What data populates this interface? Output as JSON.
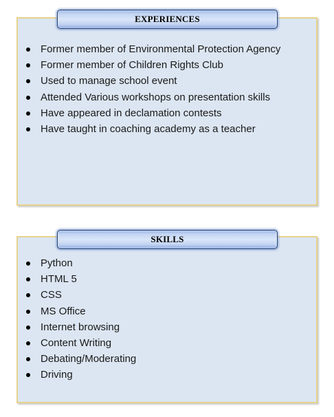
{
  "experiences": {
    "title": "EXPERIENCES",
    "items": [
      "Former member of Environmental Protection Agency",
      "Former member of Children Rights Club",
      "Used to manage school event",
      "Attended Various workshops on presentation skills",
      "Have appeared in declamation contests",
      "Have taught in coaching academy as a teacher"
    ]
  },
  "skills": {
    "title": "SKILLS",
    "items": [
      "Python",
      "HTML 5",
      "CSS",
      "MS Office",
      "Internet browsing",
      "Content Writing",
      "Debating/Moderating",
      "Driving"
    ]
  },
  "colors": {
    "box_fill": "#dce6f2",
    "box_border": "#e6d28c",
    "tab_border": "#24416f",
    "tab_fill": "#c6d7f4"
  }
}
